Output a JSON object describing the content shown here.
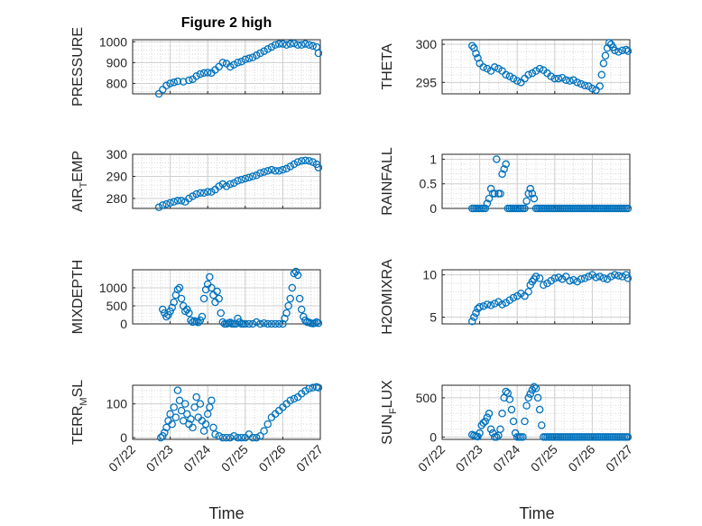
{
  "figure": {
    "title": "Figure 2 high",
    "marker_color": "#0072BD",
    "x_ticks": [
      "07/22",
      "07/23",
      "07/24",
      "07/25",
      "07/26",
      "07/27"
    ],
    "xlabel": "Time"
  },
  "chart_data": [
    {
      "type": "scatter",
      "ylabel": "PRESSURE",
      "xlim": [
        0,
        5
      ],
      "ylim": [
        750,
        1010
      ],
      "yticks": [
        800,
        900,
        1000
      ],
      "grid": true,
      "title": "Figure 2 high",
      "x": [
        0.7,
        0.8,
        0.9,
        1.0,
        1.1,
        1.2,
        1.35,
        1.5,
        1.6,
        1.7,
        1.8,
        1.9,
        2.0,
        2.1,
        2.2,
        2.3,
        2.4,
        2.5,
        2.6,
        2.7,
        2.8,
        2.9,
        3.0,
        3.1,
        3.2,
        3.3,
        3.4,
        3.5,
        3.6,
        3.7,
        3.8,
        3.9,
        4.0,
        4.1,
        4.2,
        4.3,
        4.4,
        4.5,
        4.6,
        4.7,
        4.8,
        4.9,
        4.95
      ],
      "y": [
        750,
        770,
        790,
        800,
        805,
        810,
        808,
        815,
        820,
        835,
        845,
        850,
        852,
        850,
        865,
        880,
        900,
        895,
        880,
        890,
        900,
        905,
        915,
        920,
        925,
        935,
        945,
        955,
        965,
        975,
        985,
        990,
        990,
        985,
        990,
        992,
        985,
        985,
        990,
        985,
        980,
        975,
        945
      ]
    },
    {
      "type": "scatter",
      "ylabel": "THETA",
      "xlim": [
        0,
        5
      ],
      "ylim": [
        293.5,
        300.6
      ],
      "yticks": [
        295,
        300
      ],
      "grid": true,
      "x": [
        0.8,
        0.85,
        0.9,
        0.95,
        1.0,
        1.1,
        1.2,
        1.3,
        1.4,
        1.5,
        1.6,
        1.7,
        1.8,
        1.9,
        2.0,
        2.1,
        2.2,
        2.3,
        2.4,
        2.5,
        2.6,
        2.7,
        2.8,
        2.9,
        3.0,
        3.1,
        3.2,
        3.3,
        3.4,
        3.5,
        3.6,
        3.7,
        3.8,
        3.9,
        4.0,
        4.1,
        4.2,
        4.25,
        4.3,
        4.35,
        4.4,
        4.45,
        4.5,
        4.55,
        4.6,
        4.7,
        4.8,
        4.9,
        4.95
      ],
      "y": [
        299.8,
        299.5,
        298.8,
        298.2,
        297.5,
        297.0,
        296.8,
        296.5,
        297.0,
        296.8,
        296.5,
        296.0,
        295.8,
        295.5,
        295.2,
        295.0,
        295.5,
        296.0,
        296.2,
        296.5,
        296.8,
        296.6,
        296.2,
        295.8,
        295.5,
        295.5,
        295.6,
        295.3,
        295.2,
        295.3,
        295.0,
        294.8,
        294.6,
        294.5,
        294.2,
        294.0,
        294.5,
        296.0,
        297.5,
        298.5,
        299.5,
        300.2,
        300.0,
        299.6,
        299.2,
        299.0,
        299.2,
        299.3,
        299.1
      ]
    },
    {
      "type": "scatter",
      "ylabel": "AIR_TEMP",
      "xlim": [
        0,
        5
      ],
      "ylim": [
        275.5,
        300
      ],
      "yticks": [
        280,
        290,
        300
      ],
      "grid": true,
      "x": [
        0.7,
        0.8,
        0.9,
        1.0,
        1.1,
        1.2,
        1.3,
        1.4,
        1.5,
        1.6,
        1.7,
        1.8,
        1.9,
        2.0,
        2.1,
        2.2,
        2.3,
        2.4,
        2.5,
        2.6,
        2.7,
        2.8,
        2.9,
        3.0,
        3.1,
        3.2,
        3.3,
        3.4,
        3.5,
        3.6,
        3.7,
        3.8,
        3.9,
        4.0,
        4.1,
        4.2,
        4.3,
        4.4,
        4.5,
        4.6,
        4.7,
        4.8,
        4.9,
        4.95
      ],
      "y": [
        276,
        277,
        277.5,
        278,
        278.5,
        279,
        279,
        278.5,
        280,
        281,
        282,
        282.5,
        282.5,
        283,
        283,
        284,
        285.5,
        286.5,
        285.5,
        286.5,
        287,
        288,
        288.5,
        289,
        289.5,
        290,
        290.5,
        291.5,
        292,
        292.5,
        293,
        292.5,
        292.5,
        293,
        293.5,
        294.5,
        295.5,
        296.5,
        297,
        297.2,
        297,
        296.5,
        295.5,
        294
      ]
    },
    {
      "type": "scatter",
      "ylabel": "RAINFALL",
      "xlim": [
        0,
        5
      ],
      "ylim": [
        0,
        1.1
      ],
      "yticks": [
        0,
        0.5,
        1
      ],
      "grid": true,
      "x": [
        0.8,
        0.85,
        0.9,
        0.95,
        1.0,
        1.05,
        1.1,
        1.15,
        1.2,
        1.25,
        1.3,
        1.35,
        1.4,
        1.45,
        1.5,
        1.55,
        1.6,
        1.65,
        1.7,
        1.75,
        1.8,
        1.85,
        1.9,
        1.95,
        2.0,
        2.05,
        2.1,
        2.15,
        2.2,
        2.25,
        2.3,
        2.35,
        2.4,
        2.45,
        2.5,
        2.55,
        2.6,
        2.65,
        2.7,
        2.75,
        2.8,
        2.85,
        2.9,
        2.95,
        3.0,
        3.05,
        3.1,
        3.15,
        3.2,
        3.25,
        3.3,
        3.35,
        3.4,
        3.45,
        3.5,
        3.55,
        3.6,
        3.65,
        3.7,
        3.75,
        3.8,
        3.85,
        3.9,
        3.95,
        4.0,
        4.05,
        4.1,
        4.15,
        4.2,
        4.25,
        4.3,
        4.35,
        4.4,
        4.45,
        4.5,
        4.55,
        4.6,
        4.65,
        4.7,
        4.75,
        4.8,
        4.85,
        4.9,
        4.95
      ],
      "y": [
        0,
        0,
        0,
        0,
        0,
        0,
        0,
        0,
        0.1,
        0.2,
        0.4,
        0.3,
        0.3,
        1,
        0.3,
        0.3,
        0.7,
        0.8,
        0.9,
        0,
        0,
        0,
        0,
        0,
        0,
        0,
        0,
        0,
        0,
        0.15,
        0.3,
        0.4,
        0.3,
        0.2,
        0,
        0,
        0,
        0,
        0,
        0,
        0,
        0,
        0,
        0,
        0,
        0,
        0,
        0,
        0,
        0,
        0,
        0,
        0,
        0,
        0,
        0,
        0,
        0,
        0,
        0,
        0,
        0,
        0,
        0,
        0,
        0,
        0,
        0,
        0,
        0,
        0,
        0,
        0,
        0,
        0,
        0,
        0,
        0,
        0,
        0,
        0,
        0,
        0,
        0
      ]
    },
    {
      "type": "scatter",
      "ylabel": "MIXDEPTH",
      "xlim": [
        0,
        5
      ],
      "ylim": [
        0,
        1500
      ],
      "yticks": [
        0,
        500,
        1000
      ],
      "grid": true,
      "x": [
        0.8,
        0.85,
        0.9,
        0.95,
        1.0,
        1.05,
        1.1,
        1.15,
        1.2,
        1.25,
        1.3,
        1.35,
        1.4,
        1.45,
        1.5,
        1.55,
        1.6,
        1.65,
        1.7,
        1.75,
        1.8,
        1.85,
        1.9,
        1.95,
        2.0,
        2.05,
        2.1,
        2.15,
        2.2,
        2.25,
        2.3,
        2.35,
        2.4,
        2.45,
        2.5,
        2.55,
        2.6,
        2.65,
        2.7,
        2.75,
        2.8,
        2.85,
        2.9,
        2.95,
        3.0,
        3.1,
        3.2,
        3.3,
        3.4,
        3.5,
        3.6,
        3.7,
        3.8,
        3.9,
        4.0,
        4.05,
        4.1,
        4.15,
        4.2,
        4.25,
        4.3,
        4.35,
        4.4,
        4.45,
        4.5,
        4.55,
        4.6,
        4.65,
        4.7,
        4.75,
        4.8,
        4.85,
        4.9,
        4.95
      ],
      "y": [
        400,
        300,
        200,
        250,
        350,
        450,
        600,
        800,
        950,
        1000,
        700,
        500,
        350,
        400,
        300,
        100,
        50,
        80,
        60,
        40,
        100,
        200,
        700,
        950,
        1100,
        1300,
        1000,
        800,
        600,
        900,
        700,
        300,
        50,
        0,
        0,
        20,
        40,
        0,
        0,
        0,
        150,
        50,
        0,
        0,
        0,
        0,
        0,
        50,
        0,
        20,
        0,
        0,
        0,
        0,
        0,
        150,
        300,
        500,
        700,
        1000,
        1400,
        1450,
        1350,
        700,
        400,
        200,
        100,
        50,
        40,
        20,
        10,
        20,
        50,
        20
      ]
    },
    {
      "type": "scatter",
      "ylabel": "H2OMIXRA",
      "xlim": [
        0,
        5
      ],
      "ylim": [
        4.2,
        10.6
      ],
      "yticks": [
        5,
        10
      ],
      "grid": true,
      "x": [
        0.8,
        0.85,
        0.9,
        0.95,
        1.0,
        1.1,
        1.2,
        1.3,
        1.4,
        1.5,
        1.6,
        1.7,
        1.8,
        1.9,
        2.0,
        2.1,
        2.2,
        2.3,
        2.35,
        2.4,
        2.45,
        2.5,
        2.6,
        2.7,
        2.8,
        2.9,
        3.0,
        3.1,
        3.2,
        3.3,
        3.4,
        3.5,
        3.6,
        3.7,
        3.8,
        3.9,
        4.0,
        4.1,
        4.2,
        4.3,
        4.4,
        4.5,
        4.6,
        4.7,
        4.8,
        4.9,
        4.95
      ],
      "y": [
        4.5,
        5.0,
        5.5,
        6.0,
        6.2,
        6.3,
        6.5,
        6.4,
        6.6,
        6.8,
        6.5,
        6.7,
        7.0,
        7.3,
        7.5,
        7.8,
        7.5,
        8.0,
        8.8,
        9.2,
        9.5,
        9.8,
        9.6,
        8.8,
        9.0,
        9.3,
        9.6,
        9.7,
        9.5,
        9.8,
        9.3,
        9.4,
        9.2,
        9.5,
        9.6,
        9.8,
        10.0,
        9.7,
        9.8,
        9.6,
        9.5,
        9.8,
        10.0,
        9.9,
        9.8,
        10.0,
        9.6
      ]
    },
    {
      "type": "scatter",
      "ylabel": "TERR_MSL",
      "xlim": [
        0,
        5
      ],
      "ylim": [
        -5,
        155
      ],
      "yticks": [
        0,
        100
      ],
      "grid": true,
      "x": [
        0.75,
        0.8,
        0.85,
        0.9,
        0.95,
        1.0,
        1.05,
        1.1,
        1.15,
        1.2,
        1.25,
        1.3,
        1.35,
        1.4,
        1.45,
        1.5,
        1.55,
        1.6,
        1.65,
        1.7,
        1.75,
        1.8,
        1.85,
        1.9,
        1.95,
        2.0,
        2.05,
        2.1,
        2.15,
        2.2,
        2.3,
        2.4,
        2.5,
        2.6,
        2.7,
        2.8,
        2.9,
        3.0,
        3.1,
        3.2,
        3.3,
        3.4,
        3.5,
        3.6,
        3.7,
        3.8,
        3.9,
        4.0,
        4.1,
        4.2,
        4.3,
        4.4,
        4.5,
        4.6,
        4.7,
        4.8,
        4.9,
        4.95
      ],
      "y": [
        0,
        5,
        15,
        30,
        50,
        70,
        40,
        90,
        60,
        140,
        110,
        80,
        50,
        100,
        70,
        40,
        55,
        30,
        90,
        120,
        60,
        100,
        50,
        20,
        40,
        70,
        90,
        110,
        30,
        10,
        5,
        0,
        0,
        0,
        5,
        0,
        0,
        0,
        10,
        0,
        0,
        5,
        20,
        40,
        60,
        70,
        80,
        90,
        100,
        110,
        115,
        120,
        130,
        138,
        145,
        148,
        150,
        148
      ]
    },
    {
      "type": "scatter",
      "ylabel": "SUN_FLUX",
      "xlim": [
        0,
        5
      ],
      "ylim": [
        -30,
        660
      ],
      "yticks": [
        0,
        500
      ],
      "grid": true,
      "x": [
        0.8,
        0.85,
        0.9,
        0.95,
        1.0,
        1.05,
        1.1,
        1.15,
        1.2,
        1.25,
        1.3,
        1.35,
        1.4,
        1.45,
        1.5,
        1.55,
        1.6,
        1.65,
        1.7,
        1.75,
        1.8,
        1.85,
        1.9,
        1.95,
        2.0,
        2.05,
        2.1,
        2.15,
        2.2,
        2.25,
        2.3,
        2.35,
        2.4,
        2.45,
        2.5,
        2.55,
        2.6,
        2.65,
        2.7,
        2.75,
        2.8,
        2.85,
        2.9,
        2.95,
        3.0,
        3.05,
        3.1,
        3.15,
        3.2,
        3.25,
        3.3,
        3.35,
        3.4,
        3.45,
        3.5,
        3.55,
        3.6,
        3.65,
        3.7,
        3.75,
        3.8,
        3.85,
        3.9,
        3.95,
        4.0,
        4.05,
        4.1,
        4.15,
        4.2,
        4.25,
        4.3,
        4.35,
        4.4,
        4.45,
        4.5,
        4.55,
        4.6,
        4.65,
        4.7,
        4.75,
        4.8,
        4.85,
        4.9,
        4.95
      ],
      "y": [
        30,
        20,
        10,
        5,
        50,
        150,
        180,
        200,
        250,
        300,
        100,
        50,
        0,
        0,
        20,
        100,
        300,
        500,
        580,
        560,
        480,
        350,
        200,
        50,
        0,
        0,
        0,
        0,
        200,
        400,
        500,
        550,
        600,
        640,
        620,
        500,
        350,
        150,
        0,
        0,
        0,
        0,
        0,
        0,
        0,
        0,
        0,
        0,
        0,
        0,
        0,
        0,
        0,
        0,
        0,
        0,
        0,
        0,
        0,
        0,
        0,
        0,
        0,
        0,
        0,
        0,
        0,
        0,
        0,
        0,
        0,
        0,
        0,
        0,
        0,
        0,
        0,
        0,
        0,
        0,
        0,
        0,
        0,
        0
      ]
    }
  ]
}
